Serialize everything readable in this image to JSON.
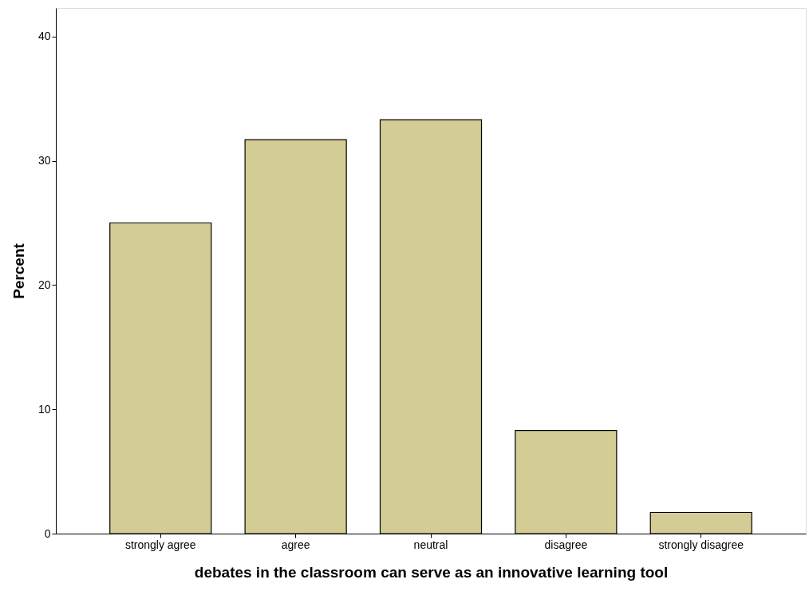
{
  "chart_data": {
    "type": "bar",
    "xlabel": "debates in the classroom can serve as an innovative learning tool",
    "ylabel": "Percent",
    "categories": [
      "strongly agree",
      "agree",
      "neutral",
      "disagree",
      "strongly disagree"
    ],
    "values": [
      25,
      31.7,
      33.3,
      8.3,
      1.7
    ],
    "color": "#d3cd95",
    "ylim": [
      0,
      42.3
    ],
    "yticks": [
      0,
      10,
      20,
      30,
      40
    ],
    "grid": false
  }
}
